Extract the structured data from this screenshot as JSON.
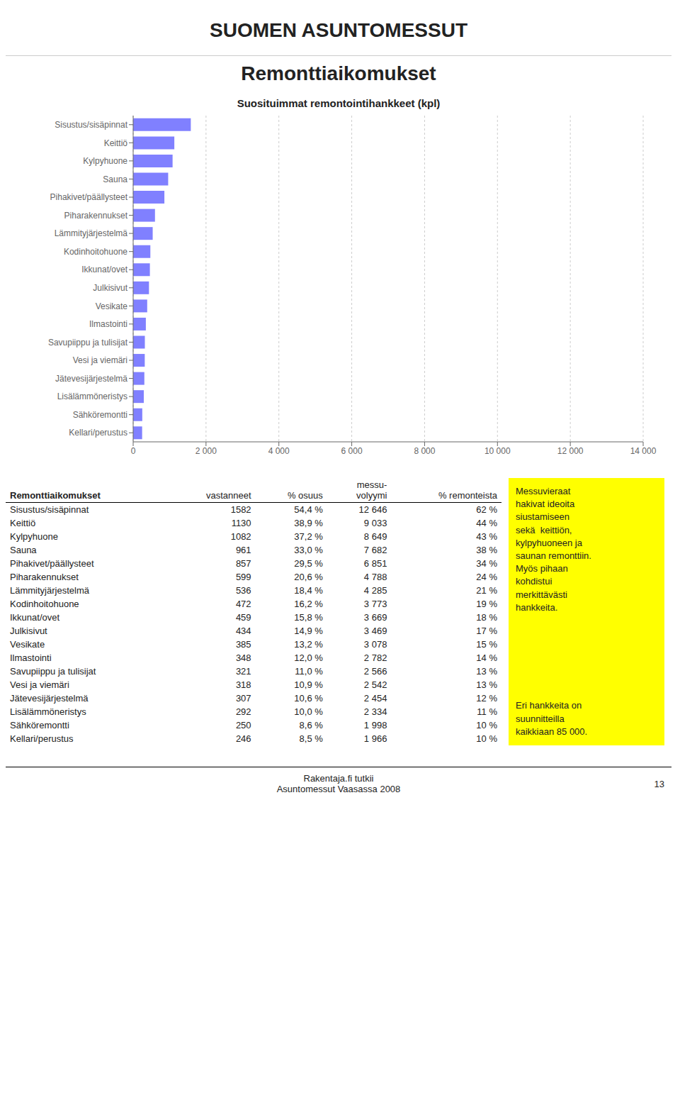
{
  "header": {
    "logo_text": "SUOMEN ASUNTOMESSUT"
  },
  "title": "Remonttiaikomukset",
  "chart_data": {
    "type": "bar",
    "orientation": "horizontal",
    "title": "Suosituimmat remontointihankkeet (kpl)",
    "categories": [
      "Sisustus/sisäpinnat",
      "Keittiö",
      "Kylpyhuone",
      "Sauna",
      "Pihakivet/päällysteet",
      "Piharakennukset",
      "Lämmityjärjestelmä",
      "Kodinhoitohuone",
      "Ikkunat/ovet",
      "Julkisivut",
      "Vesikate",
      "Ilmastointi",
      "Savupiippu ja tulisijat",
      "Vesi ja viemäri",
      "Jätevesijärjestelmä",
      "Lisälämmöneristys",
      "Sähköremontti",
      "Kellari/perustus"
    ],
    "values": [
      1582,
      1130,
      1082,
      961,
      857,
      599,
      536,
      472,
      459,
      434,
      385,
      348,
      321,
      318,
      307,
      292,
      250,
      246
    ],
    "color": "#8080ff",
    "xlim": [
      0,
      14000
    ],
    "xticks": [
      0,
      {
        "value": 2000,
        "label": "2 000"
      },
      {
        "value": 4000,
        "label": "4 000"
      },
      {
        "value": 6000,
        "label": "6 000"
      },
      {
        "value": 8000,
        "label": "8 000"
      },
      {
        "value": 10000,
        "label": "10 000"
      },
      {
        "value": 12000,
        "label": "12 000"
      },
      {
        "value": 14000,
        "label": "14 000"
      }
    ],
    "grid": true
  },
  "table": {
    "header": [
      "Remonttiaikomukset",
      "vastanneet",
      "% osuus",
      "messu-\nvolyymi",
      "% remonteista"
    ],
    "categories": [
      "Sisustus/sisäpinnat",
      "Keittiö",
      "Kylpyhuone",
      "Sauna",
      "Pihakivet/päällysteet",
      "Piharakennukset",
      "Lämmityjärjestelmä",
      "Kodinhoitohuone",
      "Ikkunat/ovet",
      "Julkisivut",
      "Vesikate",
      "Ilmastointi",
      "Savupiippu ja tulisijat",
      "Vesi ja viemäri",
      "Jätevesijärjestelmä",
      "Lisälämmöneristys",
      "Sähköremontti",
      "Kellari/perustus"
    ],
    "vastanneet": [
      1582,
      1130,
      1082,
      961,
      857,
      599,
      536,
      472,
      459,
      434,
      385,
      348,
      321,
      318,
      307,
      292,
      250,
      246
    ],
    "osuus": [
      "54,4 %",
      "38,9 %",
      "37,2 %",
      "33,0 %",
      "29,5 %",
      "20,6 %",
      "18,4 %",
      "16,2 %",
      "15,8 %",
      "14,9 %",
      "13,2 %",
      "12,0 %",
      "11,0 %",
      "10,9 %",
      "10,6 %",
      "10,0 %",
      "8,6 %",
      "8,5 %"
    ],
    "volyymi": [
      "12 646",
      "9 033",
      "8 649",
      "7 682",
      "6 851",
      "4 788",
      "4 285",
      "3 773",
      "3 669",
      "3 469",
      "3 078",
      "2 782",
      "2 566",
      "2 542",
      "2 454",
      "2 334",
      "1 998",
      "1 966"
    ],
    "remonteista": [
      "62 %",
      "44 %",
      "43 %",
      "38 %",
      "34 %",
      "24 %",
      "21 %",
      "19 %",
      "18 %",
      "17 %",
      "15 %",
      "14 %",
      "13 %",
      "13 %",
      "12 %",
      "11 %",
      "10 %",
      "10 %"
    ]
  },
  "notes": {
    "color": "#ffff00",
    "text1": "Messuvieraat\nhakivat ideoita\nsiustamiseen\nsekä  keittiön,\nkylpyhuoneen ja\nsaunan remonttiin.\nMyös pihaan\nkohdistui\nmerkittävästi\nhankkeita.",
    "text2": "Eri hankkeita on\nsuunnitteilla\nkaikkiaan 85 000."
  },
  "footer": {
    "text1": "Rakentaja.fi tutkii",
    "text2": "Asuntomessut Vaasassa 2008",
    "page": "13"
  }
}
